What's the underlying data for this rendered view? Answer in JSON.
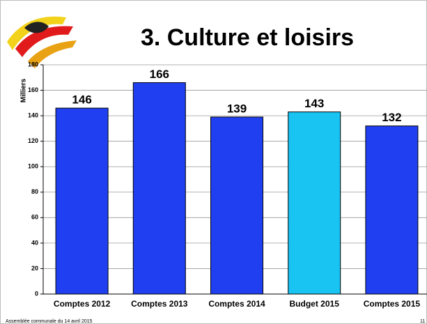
{
  "chart_data": {
    "type": "bar",
    "title": "3. Culture et loisirs",
    "y_label": "Milliers",
    "categories": [
      "Comptes 2012",
      "Comptes 2013",
      "Comptes 2014",
      "Budget 2015",
      "Comptes 2015"
    ],
    "values": [
      146,
      166,
      139,
      143,
      132
    ],
    "colors": [
      "#1f3ff0",
      "#1f3ff0",
      "#1f3ff0",
      "#19c4f2",
      "#1f3ff0"
    ],
    "ylim": [
      0,
      180
    ],
    "yticks": [
      0,
      20,
      40,
      60,
      80,
      100,
      120,
      140,
      160,
      180
    ],
    "grid": true,
    "footer": "Assemblée communale du 14 avril 2015",
    "page_number": "11"
  }
}
